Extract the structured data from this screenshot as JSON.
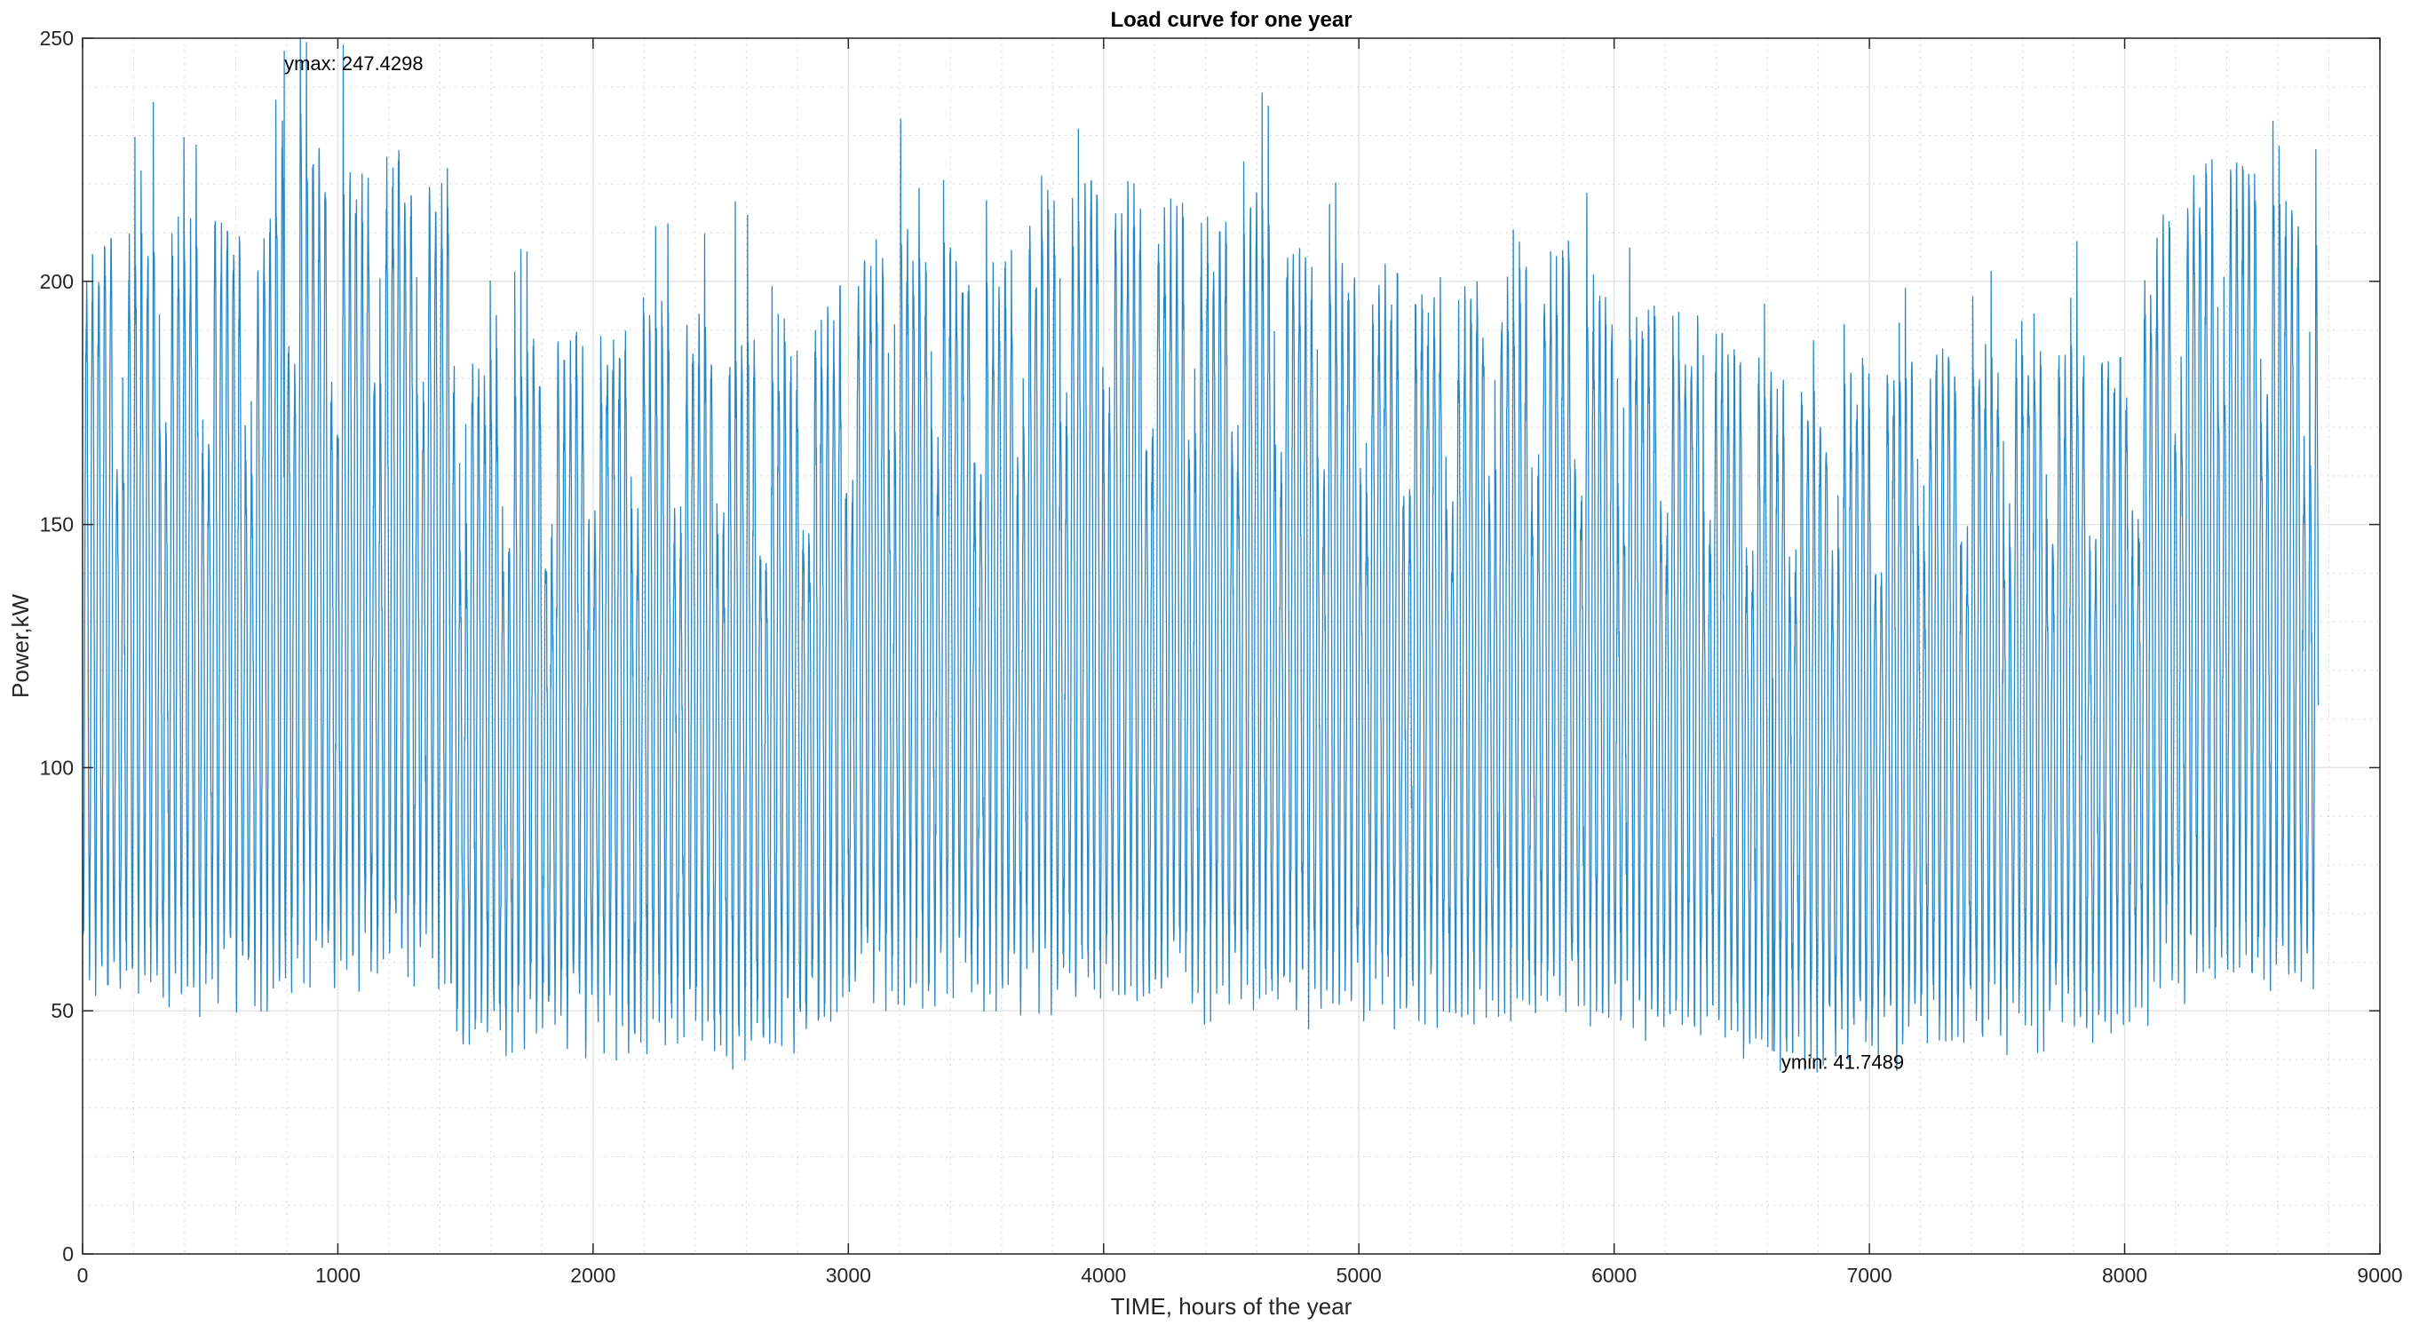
{
  "chart_data": {
    "type": "line",
    "title": "Load curve for one year",
    "xlabel": "TIME, hours of the year",
    "ylabel": "Power,kW",
    "xlim": [
      0,
      9000
    ],
    "ylim": [
      0,
      250
    ],
    "xticks": [
      0,
      1000,
      2000,
      3000,
      4000,
      5000,
      6000,
      7000,
      8000,
      9000
    ],
    "yticks": [
      0,
      50,
      100,
      150,
      200,
      250
    ],
    "xtick_labels": [
      "0",
      "1000",
      "2000",
      "3000",
      "4000",
      "5000",
      "6000",
      "7000",
      "8000",
      "9000"
    ],
    "ytick_labels": [
      "0",
      "50",
      "100",
      "150",
      "200",
      "250"
    ],
    "grid": true,
    "minor_grid": true,
    "series_color": "#0072BD",
    "series": [
      {
        "name": "",
        "hours": 8760,
        "daily_envelope": {
          "x": [
            0,
            100,
            300,
            500,
            700,
            780,
            800,
            1000,
            1200,
            1300,
            1440,
            1450,
            1600,
            1800,
            2000,
            2200,
            2400,
            2600,
            2800,
            3000,
            3200,
            3400,
            3600,
            3800,
            4000,
            4200,
            4400,
            4600,
            4800,
            5000,
            5200,
            5400,
            5600,
            5800,
            6000,
            6200,
            6400,
            6560,
            6600,
            6800,
            7000,
            7200,
            7400,
            7600,
            7800,
            8000,
            8100,
            8200,
            8400,
            8600,
            8760
          ],
          "upper": [
            195,
            205,
            205,
            208,
            200,
            228,
            232,
            215,
            220,
            215,
            212,
            180,
            178,
            180,
            182,
            185,
            185,
            182,
            180,
            195,
            205,
            200,
            195,
            210,
            215,
            210,
            205,
            210,
            200,
            195,
            195,
            190,
            195,
            200,
            190,
            188,
            185,
            178,
            175,
            172,
            175,
            180,
            182,
            180,
            180,
            178,
            195,
            215,
            220,
            215,
            200
          ],
          "lower": [
            58,
            57,
            57,
            57,
            57,
            55,
            62,
            62,
            63,
            64,
            63,
            49,
            49,
            49,
            49,
            48,
            47,
            46,
            48,
            56,
            58,
            58,
            58,
            58,
            57,
            56,
            56,
            56,
            55,
            54,
            54,
            53,
            54,
            54,
            53,
            52,
            51,
            48,
            46,
            45,
            45,
            47,
            48,
            50,
            51,
            53,
            56,
            60,
            61,
            60,
            60
          ]
        },
        "ymax": {
          "label": "ymax: 247.4298",
          "x": 790,
          "y": 247.4298
        },
        "ymin": {
          "label": "ymin: 41.7489",
          "x": 6620,
          "y": 41.7489
        }
      }
    ]
  }
}
